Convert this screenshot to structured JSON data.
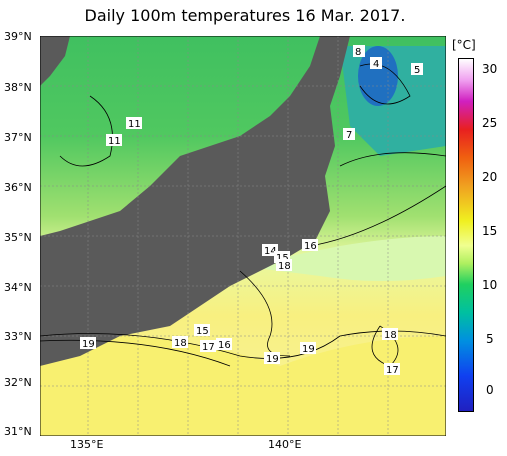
{
  "title": "Daily 100m temperatures 16 Mar. 2017.",
  "colorbar": {
    "label": "[°C]",
    "ticks": [
      "30",
      "25",
      "20",
      "15",
      "10",
      "5",
      "0"
    ]
  },
  "axes": {
    "lat_labels": [
      "39°N",
      "38°N",
      "37°N",
      "36°N",
      "35°N",
      "34°N",
      "33°N",
      "32°N",
      "31°N"
    ],
    "lon_labels": [
      "135°E",
      "140°E"
    ]
  },
  "contour_labels": [
    "8",
    "4",
    "5",
    "11",
    "11",
    "7",
    "14",
    "15",
    "16",
    "18",
    "15",
    "19",
    "18",
    "17",
    "16",
    "19",
    "19",
    "18",
    "17"
  ],
  "colors": {
    "land": "#5a5a5a",
    "warm_water": "#f4f080",
    "cool_water": "#60d060",
    "cold_water": "#20a0c0"
  }
}
